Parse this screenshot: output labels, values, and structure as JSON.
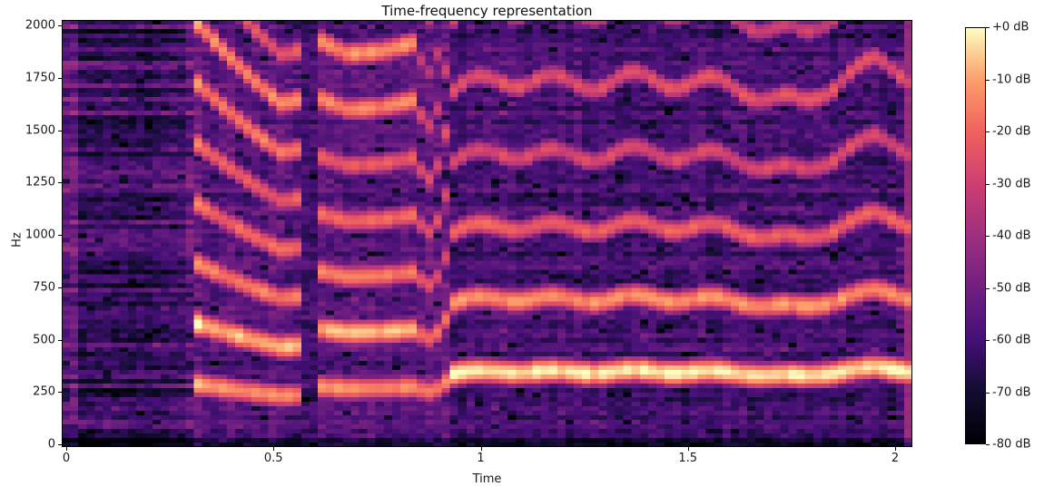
{
  "chart_data": {
    "type": "heatmap",
    "subtype": "spectrogram",
    "title": "Time-frequency representation",
    "xlabel": "Time",
    "ylabel": "Hz",
    "xlim": [
      -0.011,
      2.041
    ],
    "ylim": [
      -13,
      2026
    ],
    "xticks": {
      "values": [
        0,
        0.5,
        1,
        1.5,
        2
      ],
      "labels": [
        "0",
        "0.5",
        "1",
        "1.5",
        "2"
      ]
    },
    "yticks": {
      "values": [
        0,
        250,
        500,
        750,
        1000,
        1250,
        1500,
        1750,
        2000
      ],
      "labels": [
        "0",
        "250",
        "500",
        "750",
        "1000",
        "1250",
        "1500",
        "1750",
        "2000"
      ]
    },
    "grid_on": false,
    "colorbar": {
      "position": "right",
      "colormap": "magma",
      "vmin_db": -80,
      "vmax_db": 0,
      "tick_values_db": [
        0,
        -10,
        -20,
        -30,
        -40,
        -50,
        -60,
        -70,
        -80
      ],
      "tick_labels": [
        "+0 dB",
        "-10 dB",
        "-20 dB",
        "-30 dB",
        "-40 dB",
        "-50 dB",
        "-60 dB",
        "-70 dB",
        "-80 dB"
      ]
    },
    "colormap_stops": [
      [
        0,
        0,
        4
      ],
      [
        18,
        13,
        49
      ],
      [
        68,
        15,
        118
      ],
      [
        113,
        31,
        129
      ],
      [
        158,
        47,
        127
      ],
      [
        205,
        63,
        113
      ],
      [
        240,
        97,
        93
      ],
      [
        253,
        158,
        108
      ],
      [
        252,
        253,
        191
      ]
    ],
    "grid": {
      "cols": 103,
      "rows": 94
    },
    "bandwidth_hz": 30,
    "segments": [
      {
        "name": "pre-onset-noise",
        "t0": -0.02,
        "t1": 0.3,
        "base_db": -63
      },
      {
        "name": "note1-glide-down",
        "t0": 0.3,
        "t1": 0.575,
        "base_db": -56,
        "f0_track": [
          [
            0.3,
            292
          ],
          [
            0.38,
            268
          ],
          [
            0.46,
            246
          ],
          [
            0.52,
            232
          ],
          [
            0.575,
            236
          ]
        ],
        "harmonics_db": [
          -12,
          -7,
          -15,
          -19,
          -21,
          -15,
          -13,
          -21
        ]
      },
      {
        "name": "inter-note-gap",
        "t0": 0.575,
        "t1": 0.605,
        "base_db": -60
      },
      {
        "name": "note2-steady",
        "t0": 0.605,
        "t1": 0.845,
        "base_db": -56,
        "f0_track": [
          [
            0.605,
            276
          ],
          [
            0.68,
            266
          ],
          [
            0.76,
            268
          ],
          [
            0.845,
            274
          ]
        ],
        "harmonics_db": [
          -12,
          -7,
          -15,
          -18,
          -21,
          -14,
          -12,
          -21
        ]
      },
      {
        "name": "transition",
        "t0": 0.845,
        "t1": 0.935,
        "base_db": -54,
        "f0_track": [
          [
            0.845,
            266
          ],
          [
            0.885,
            250
          ],
          [
            0.935,
            328
          ]
        ],
        "harmonics_db": [
          -14,
          -20,
          -24,
          -26,
          -26,
          -28,
          -30,
          -30
        ]
      },
      {
        "name": "note3-vibrato",
        "t0": 0.935,
        "t1": 2.05,
        "base_db": -60,
        "f0_track": [
          [
            0.935,
            338
          ],
          [
            1.05,
            350
          ],
          [
            1.2,
            344
          ],
          [
            1.35,
            348
          ],
          [
            1.5,
            347
          ],
          [
            1.65,
            338
          ],
          [
            1.78,
            322
          ],
          [
            1.88,
            356
          ],
          [
            1.95,
            362
          ],
          [
            2.041,
            352
          ]
        ],
        "harmonics_db": [
          -2,
          -12,
          -20,
          -26,
          -25,
          -30,
          -32,
          -34
        ],
        "vibrato_hz": 8,
        "vibrato_rate": 5.2
      }
    ],
    "events": [
      {
        "name": "start-edge",
        "t": 0.005,
        "width_s": 0.016,
        "boost_db": 9
      },
      {
        "name": "attack",
        "t": 0.306,
        "width_s": 0.012,
        "boost_db": 7
      },
      {
        "name": "end-stripe",
        "t": 2.034,
        "width_s": 0.016,
        "min_db": -42
      }
    ]
  }
}
